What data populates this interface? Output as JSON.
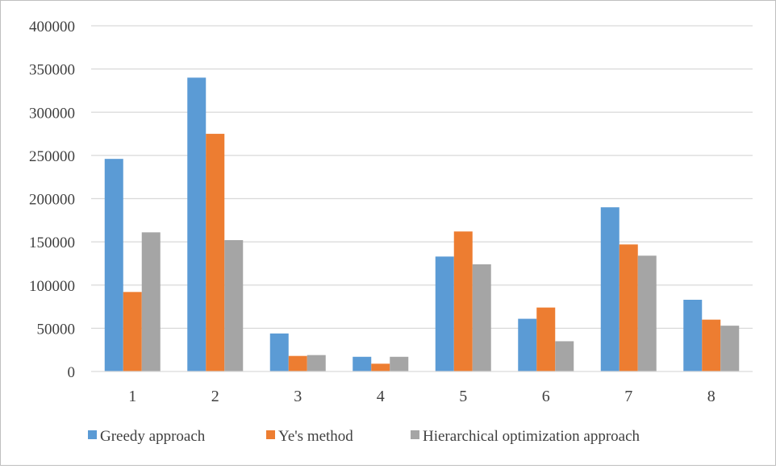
{
  "chart_data": {
    "type": "bar",
    "categories": [
      "1",
      "2",
      "3",
      "4",
      "5",
      "6",
      "7",
      "8"
    ],
    "series": [
      {
        "name": "Greedy approach",
        "color": "#5B9BD5",
        "values": [
          246000,
          340000,
          44000,
          17000,
          133000,
          61000,
          190000,
          83000
        ]
      },
      {
        "name": "Ye's method",
        "color": "#ED7D31",
        "values": [
          92000,
          275000,
          18000,
          9000,
          162000,
          74000,
          147000,
          60000
        ]
      },
      {
        "name": "Hierarchical optimization approach",
        "color": "#A5A5A5",
        "values": [
          161000,
          152000,
          19000,
          17000,
          124000,
          35000,
          134000,
          53000
        ]
      }
    ],
    "y_ticks": [
      "0",
      "50000",
      "100000",
      "150000",
      "200000",
      "250000",
      "300000",
      "350000",
      "400000"
    ],
    "ylim": [
      0,
      400000
    ],
    "grid": true,
    "gridline_color": "#d9d9d9",
    "legend_position": "bottom"
  }
}
